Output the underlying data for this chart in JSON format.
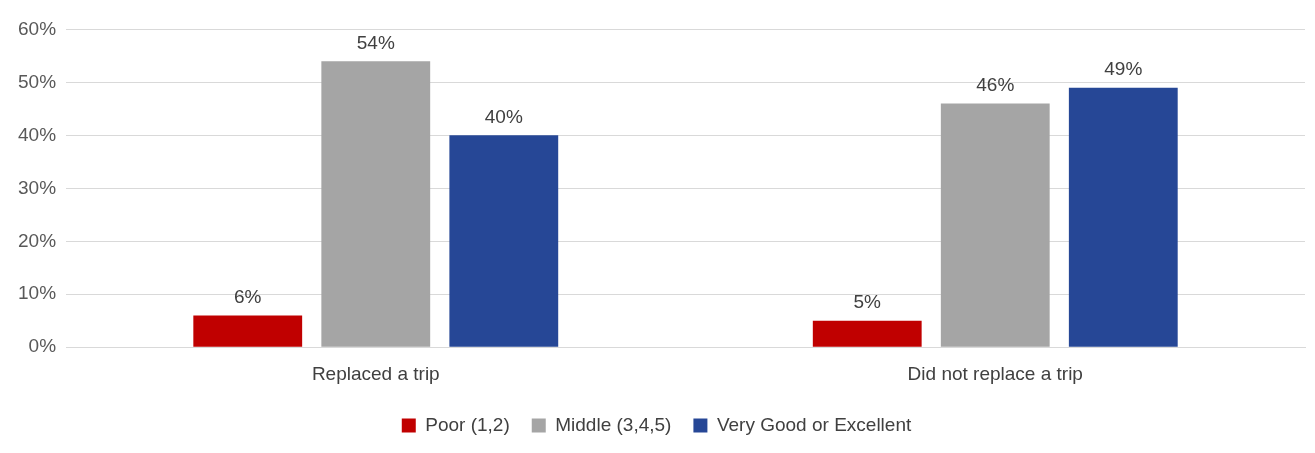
{
  "chart_data": {
    "type": "bar",
    "categories": [
      "Replaced a trip",
      "Did not replace a trip"
    ],
    "series": [
      {
        "name": "Poor (1,2)",
        "color": "#c00000",
        "values": [
          6,
          5
        ],
        "value_labels": [
          "6%",
          "5%"
        ]
      },
      {
        "name": "Middle (3,4,5)",
        "color": "#a5a5a5",
        "values": [
          54,
          46
        ],
        "value_labels": [
          "54%",
          "46%"
        ]
      },
      {
        "name": "Very Good or Excellent",
        "color": "#264796",
        "values": [
          40,
          49
        ],
        "value_labels": [
          "40%",
          "49%"
        ]
      }
    ],
    "ylim": [
      0,
      60
    ],
    "yticks": [
      {
        "value": 0,
        "label": "0%"
      },
      {
        "value": 10,
        "label": "10%"
      },
      {
        "value": 20,
        "label": "20%"
      },
      {
        "value": 30,
        "label": "30%"
      },
      {
        "value": 40,
        "label": "40%"
      },
      {
        "value": 50,
        "label": "50%"
      },
      {
        "value": 60,
        "label": "60%"
      }
    ],
    "grid": "y",
    "legend": "bottom"
  }
}
